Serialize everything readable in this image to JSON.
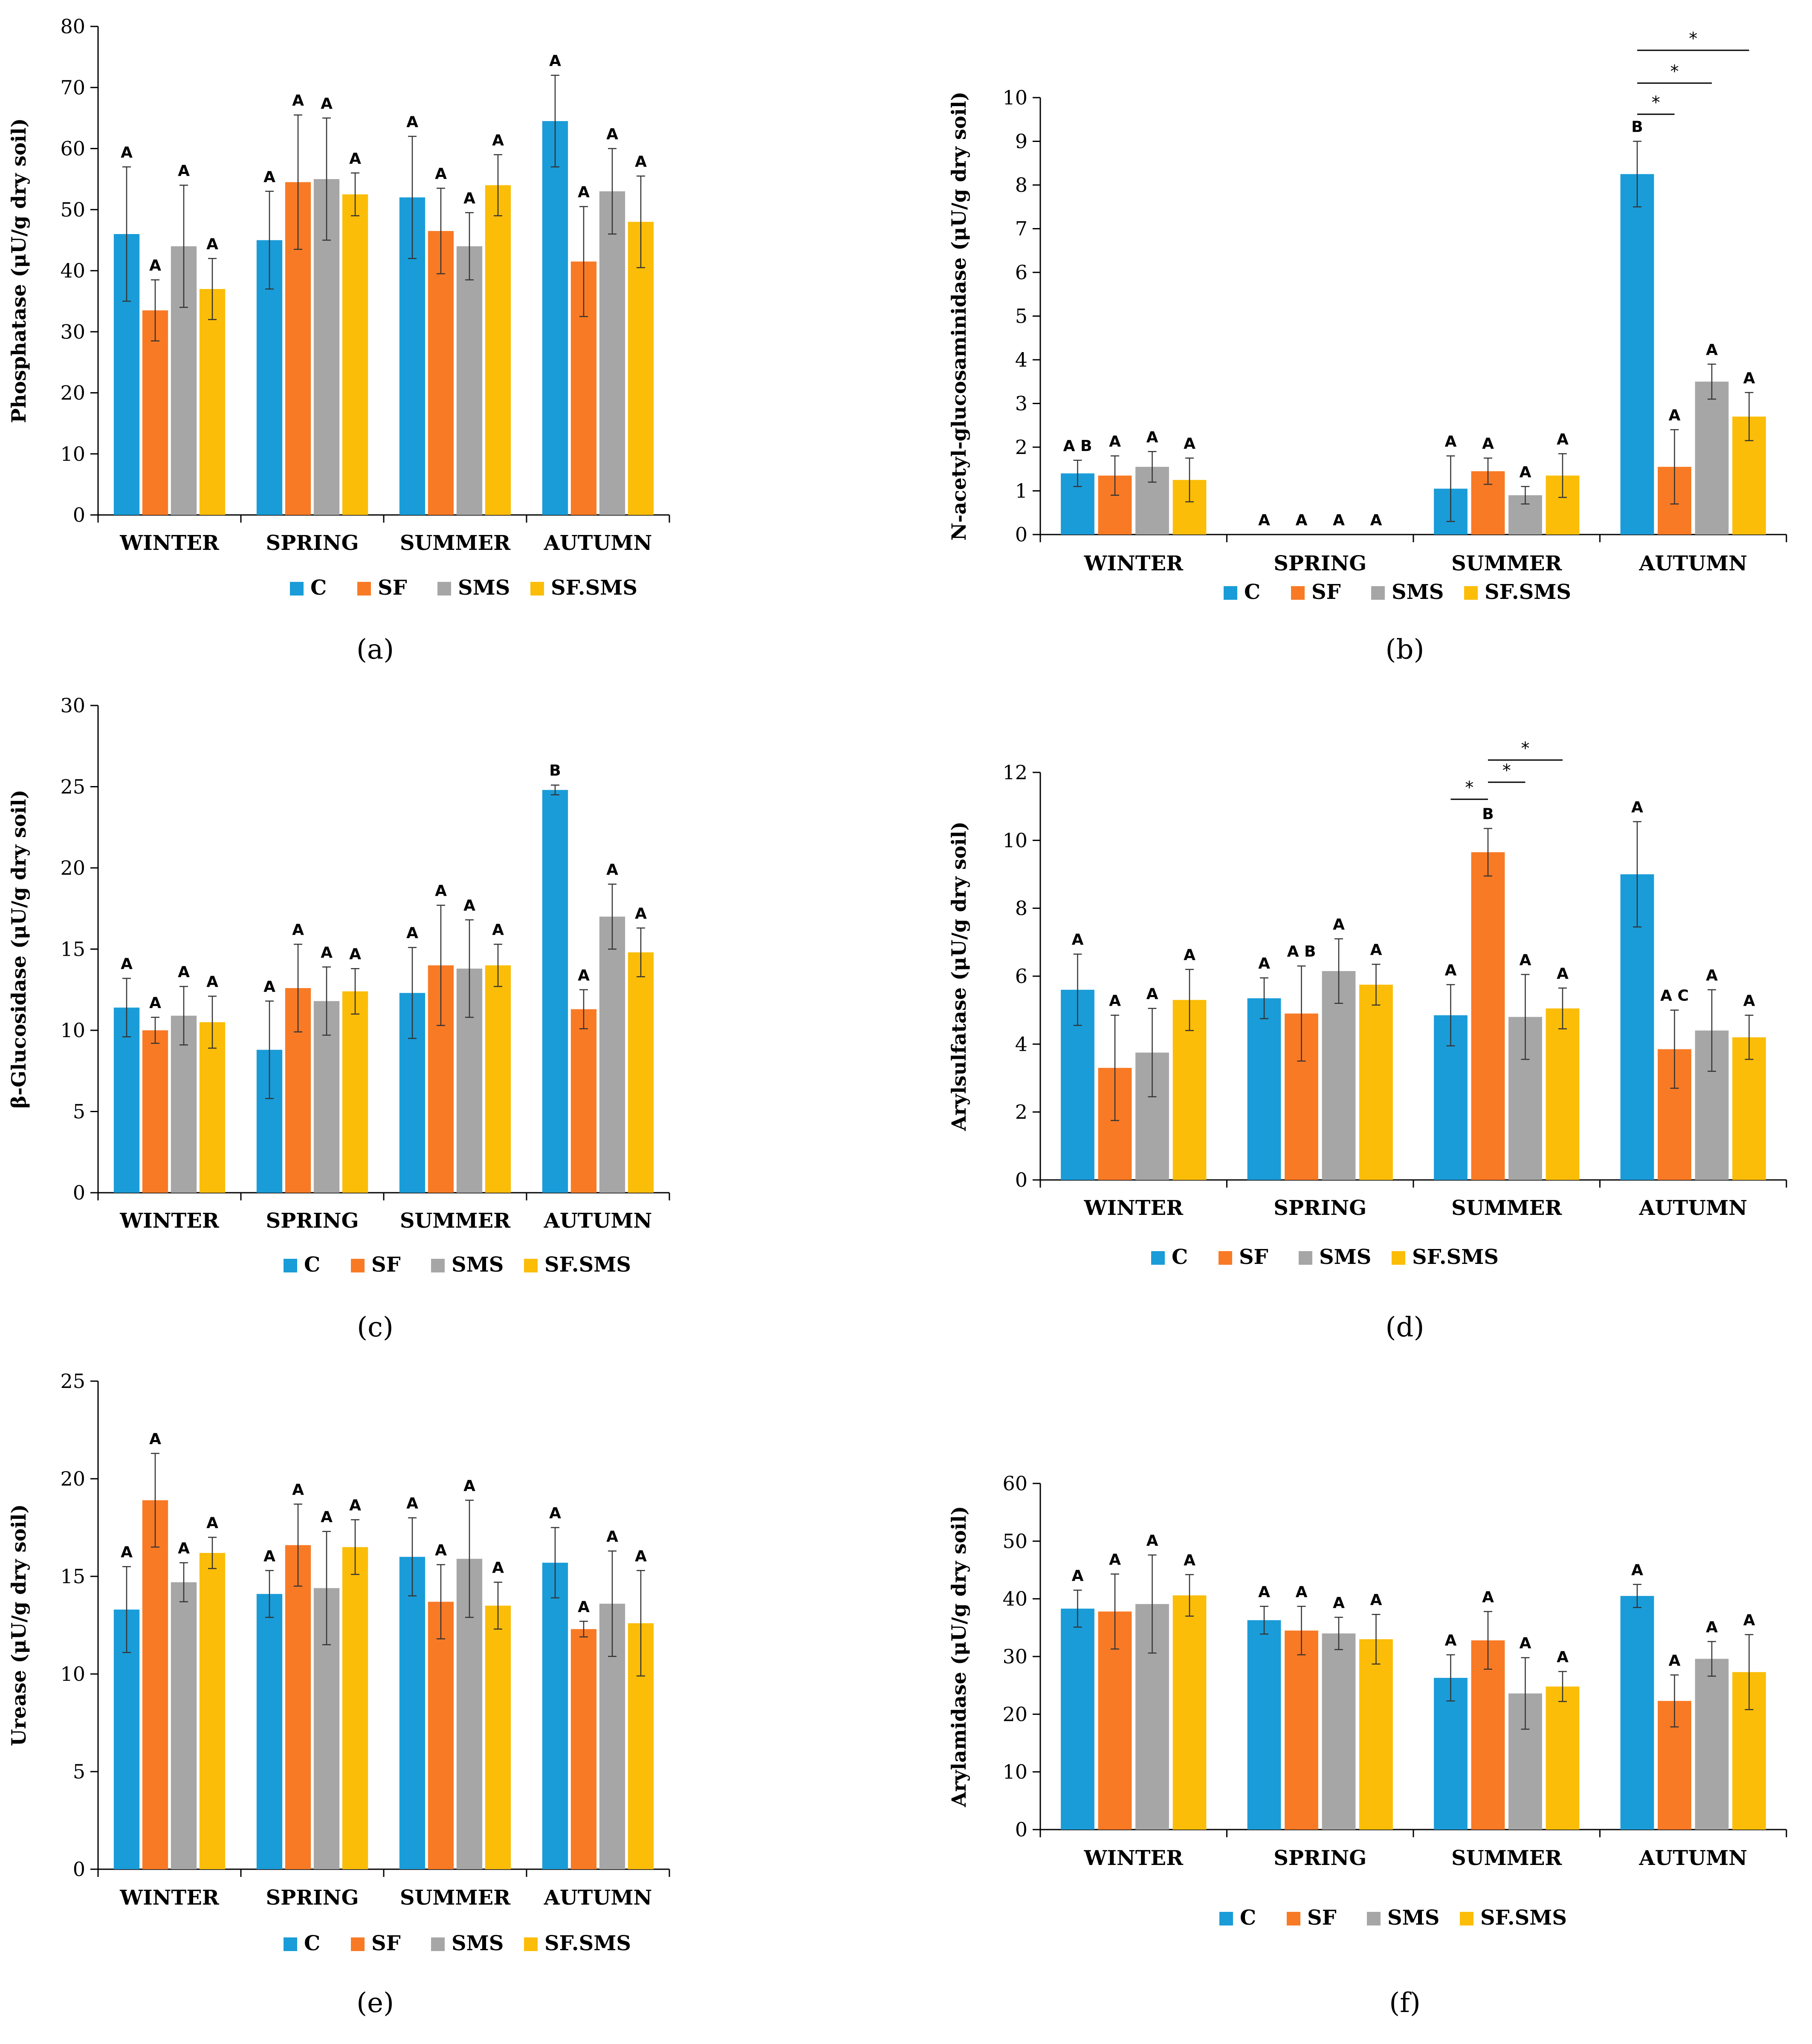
{
  "colors": {
    "C": "#1a9cd8",
    "SF": "#f97a25",
    "SMS": "#a6a6a6",
    "SF.SMS": "#fbbd07"
  },
  "chart_data": [
    {
      "type": "bar",
      "panel": "(a)",
      "panel_letter": "a",
      "ylabel": "Phosphatase (μU/g dry soil)",
      "ylim": [
        0,
        80
      ],
      "yticks": [
        0,
        10,
        20,
        30,
        40,
        50,
        60,
        70,
        80
      ],
      "categories": [
        "WINTER",
        "SPRING",
        "SUMMER",
        "AUTUMN"
      ],
      "series": [
        {
          "name": "C",
          "values": [
            46,
            45,
            52,
            64.5
          ],
          "errors": [
            11,
            8,
            10,
            7.5
          ],
          "letters": [
            "A",
            "A",
            "A",
            "A"
          ]
        },
        {
          "name": "SF",
          "values": [
            33.5,
            54.5,
            46.5,
            41.5
          ],
          "errors": [
            5,
            11,
            7,
            9
          ],
          "letters": [
            "A",
            "A",
            "A",
            "A"
          ]
        },
        {
          "name": "SMS",
          "values": [
            44,
            55,
            44,
            53
          ],
          "errors": [
            10,
            10,
            5.5,
            7
          ],
          "letters": [
            "A",
            "A",
            "A",
            "A"
          ]
        },
        {
          "name": "SF.SMS",
          "values": [
            37,
            52.5,
            54,
            48
          ],
          "errors": [
            5,
            3.5,
            5,
            7.5
          ],
          "letters": [
            "A",
            "A",
            "A",
            "A"
          ]
        }
      ],
      "significance": []
    },
    {
      "type": "bar",
      "panel": "(b)",
      "panel_letter": "b",
      "ylabel": "N-acetyl-glucosaminidase (μU/g dry soil)",
      "ylim": [
        0,
        10
      ],
      "yticks": [
        0,
        1,
        2,
        3,
        4,
        5,
        6,
        7,
        8,
        9,
        10
      ],
      "categories": [
        "WINTER",
        "SPRING",
        "SUMMER",
        "AUTUMN"
      ],
      "series": [
        {
          "name": "C",
          "values": [
            1.4,
            0,
            1.05,
            8.25
          ],
          "errors": [
            0.3,
            0,
            0.75,
            0.75
          ],
          "letters": [
            "A B",
            "A",
            "A",
            "B"
          ]
        },
        {
          "name": "SF",
          "values": [
            1.35,
            0,
            1.45,
            1.55
          ],
          "errors": [
            0.45,
            0,
            0.3,
            0.85
          ],
          "letters": [
            "A",
            "A",
            "A",
            "A"
          ]
        },
        {
          "name": "SMS",
          "values": [
            1.55,
            0,
            0.9,
            3.5
          ],
          "errors": [
            0.35,
            0,
            0.2,
            0.4
          ],
          "letters": [
            "A",
            "A",
            "A",
            "A"
          ]
        },
        {
          "name": "SF.SMS",
          "values": [
            1.25,
            0,
            1.35,
            2.7
          ],
          "errors": [
            0.5,
            0,
            0.5,
            0.55
          ],
          "letters": [
            "A",
            "A",
            "A",
            "A"
          ]
        }
      ],
      "significance": [
        {
          "category": 3,
          "from": 0,
          "to": 1,
          "label": "*"
        },
        {
          "category": 3,
          "from": 0,
          "to": 2,
          "label": "*"
        },
        {
          "category": 3,
          "from": 0,
          "to": 3,
          "label": "*"
        }
      ]
    },
    {
      "type": "bar",
      "panel": "(c)",
      "panel_letter": "c",
      "ylabel": "β-Glucosidase (μU/g dry soil)",
      "ylim": [
        0,
        30
      ],
      "yticks": [
        0,
        5,
        10,
        15,
        20,
        25,
        30
      ],
      "categories": [
        "WINTER",
        "SPRING",
        "SUMMER",
        "AUTUMN"
      ],
      "series": [
        {
          "name": "C",
          "values": [
            11.4,
            8.8,
            12.3,
            24.8
          ],
          "errors": [
            1.8,
            3,
            2.8,
            0.3
          ],
          "letters": [
            "A",
            "A",
            "A",
            "B"
          ]
        },
        {
          "name": "SF",
          "values": [
            10,
            12.6,
            14,
            11.3
          ],
          "errors": [
            0.8,
            2.7,
            3.7,
            1.2
          ],
          "letters": [
            "A",
            "A",
            "A",
            "A"
          ]
        },
        {
          "name": "SMS",
          "values": [
            10.9,
            11.8,
            13.8,
            17
          ],
          "errors": [
            1.8,
            2.1,
            3,
            2
          ],
          "letters": [
            "A",
            "A",
            "A",
            "A"
          ]
        },
        {
          "name": "SF.SMS",
          "values": [
            10.5,
            12.4,
            14,
            14.8
          ],
          "errors": [
            1.6,
            1.4,
            1.3,
            1.5
          ],
          "letters": [
            "A",
            "A",
            "A",
            "A"
          ]
        }
      ],
      "significance": []
    },
    {
      "type": "bar",
      "panel": "(d)",
      "panel_letter": "d",
      "ylabel": "Arylsulfatase (μU/g dry soil)",
      "ylim": [
        0,
        12
      ],
      "yticks": [
        0,
        2,
        4,
        6,
        8,
        10,
        12
      ],
      "categories": [
        "WINTER",
        "SPRING",
        "SUMMER",
        "AUTUMN"
      ],
      "series": [
        {
          "name": "C",
          "values": [
            5.6,
            5.35,
            4.85,
            9
          ],
          "errors": [
            1.05,
            0.6,
            0.9,
            1.55
          ],
          "letters": [
            "A",
            "A",
            "A",
            "A"
          ]
        },
        {
          "name": "SF",
          "values": [
            3.3,
            4.9,
            9.65,
            3.85
          ],
          "errors": [
            1.55,
            1.4,
            0.7,
            1.15
          ],
          "letters": [
            "A",
            "A B",
            "B",
            "A C"
          ]
        },
        {
          "name": "SMS",
          "values": [
            3.75,
            6.15,
            4.8,
            4.4
          ],
          "errors": [
            1.3,
            0.95,
            1.25,
            1.2
          ],
          "letters": [
            "A",
            "A",
            "A",
            "A"
          ]
        },
        {
          "name": "SF.SMS",
          "values": [
            5.3,
            5.75,
            5.05,
            4.2
          ],
          "errors": [
            0.9,
            0.6,
            0.6,
            0.65
          ],
          "letters": [
            "A",
            "A",
            "A",
            "A"
          ]
        }
      ],
      "significance": [
        {
          "category": 2,
          "from": 0,
          "to": 1,
          "label": "*"
        },
        {
          "category": 2,
          "from": 1,
          "to": 2,
          "label": "*"
        },
        {
          "category": 2,
          "from": 1,
          "to": 3,
          "label": "*"
        }
      ]
    },
    {
      "type": "bar",
      "panel": "(e)",
      "panel_letter": "e",
      "ylabel": "Urease (μU/g dry soil)",
      "ylim": [
        0,
        25
      ],
      "yticks": [
        0,
        5,
        10,
        15,
        20,
        25
      ],
      "categories": [
        "WINTER",
        "SPRING",
        "SUMMER",
        "AUTUMN"
      ],
      "series": [
        {
          "name": "C",
          "values": [
            13.3,
            14.1,
            16,
            15.7
          ],
          "errors": [
            2.2,
            1.2,
            2,
            1.8
          ],
          "letters": [
            "A",
            "A",
            "A",
            "A"
          ]
        },
        {
          "name": "SF",
          "values": [
            18.9,
            16.6,
            13.7,
            12.3
          ],
          "errors": [
            2.4,
            2.1,
            1.9,
            0.4
          ],
          "letters": [
            "A",
            "A",
            "A",
            "A"
          ]
        },
        {
          "name": "SMS",
          "values": [
            14.7,
            14.4,
            15.9,
            13.6
          ],
          "errors": [
            1,
            2.9,
            3,
            2.7
          ],
          "letters": [
            "A",
            "A",
            "A",
            "A"
          ]
        },
        {
          "name": "SF.SMS",
          "values": [
            16.2,
            16.5,
            13.5,
            12.6
          ],
          "errors": [
            0.8,
            1.4,
            1.2,
            2.7
          ],
          "letters": [
            "A",
            "A",
            "A",
            "A"
          ]
        }
      ],
      "significance": []
    },
    {
      "type": "bar",
      "panel": "(f)",
      "panel_letter": "f",
      "ylabel": "Arylamidase (μU/g dry soil)",
      "ylim": [
        0,
        60
      ],
      "yticks": [
        0,
        10,
        20,
        30,
        40,
        50,
        60
      ],
      "categories": [
        "WINTER",
        "SPRING",
        "SUMMER",
        "AUTUMN"
      ],
      "series": [
        {
          "name": "C",
          "values": [
            38.3,
            36.3,
            26.3,
            40.5
          ],
          "errors": [
            3.2,
            2.4,
            4,
            2
          ],
          "letters": [
            "A",
            "A",
            "A",
            "A"
          ]
        },
        {
          "name": "SF",
          "values": [
            37.8,
            34.5,
            32.8,
            22.3
          ],
          "errors": [
            6.5,
            4.2,
            5,
            4.5
          ],
          "letters": [
            "A",
            "A",
            "A",
            "A"
          ]
        },
        {
          "name": "SMS",
          "values": [
            39.1,
            34,
            23.6,
            29.6
          ],
          "errors": [
            8.5,
            2.8,
            6.2,
            3
          ],
          "letters": [
            "A",
            "A",
            "A",
            "A"
          ]
        },
        {
          "name": "SF.SMS",
          "values": [
            40.6,
            33,
            24.8,
            27.3
          ],
          "errors": [
            3.6,
            4.3,
            2.6,
            6.5
          ],
          "letters": [
            "A",
            "A",
            "A",
            "A"
          ]
        }
      ],
      "significance": []
    }
  ],
  "legend": [
    "C",
    "SF",
    "SMS",
    "SF.SMS"
  ]
}
